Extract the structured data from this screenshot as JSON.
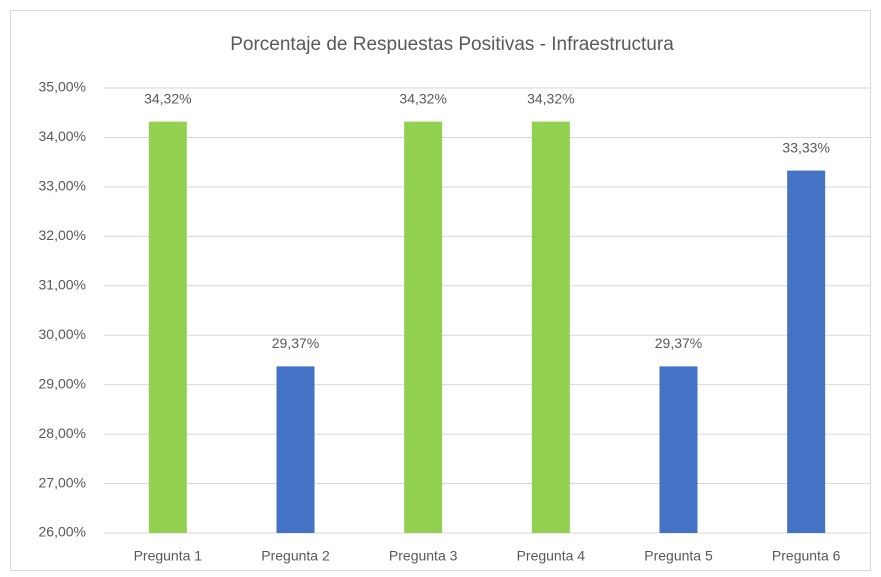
{
  "chart_data": {
    "type": "bar",
    "title": "Porcentaje de Respuestas Positivas - Infraestructura",
    "categories": [
      "Pregunta 1",
      "Pregunta 2",
      "Pregunta 3",
      "Pregunta 4",
      "Pregunta 5",
      "Pregunta 6"
    ],
    "values": [
      34.32,
      29.37,
      34.32,
      34.32,
      29.37,
      33.33
    ],
    "value_labels": [
      "34,32%",
      "29,37%",
      "34,32%",
      "34,32%",
      "29,37%",
      "33,33%"
    ],
    "colors": [
      "#92d050",
      "#4472c4",
      "#92d050",
      "#92d050",
      "#4472c4",
      "#4472c4"
    ],
    "ylim": [
      26,
      35
    ],
    "yticks": [
      {
        "value": 26,
        "label": "26,00%"
      },
      {
        "value": 27,
        "label": "27,00%"
      },
      {
        "value": 28,
        "label": "28,00%"
      },
      {
        "value": 29,
        "label": "29,00%"
      },
      {
        "value": 30,
        "label": "30,00%"
      },
      {
        "value": 31,
        "label": "31,00%"
      },
      {
        "value": 32,
        "label": "32,00%"
      },
      {
        "value": 33,
        "label": "33,00%"
      },
      {
        "value": 34,
        "label": "34,00%"
      },
      {
        "value": 35,
        "label": "35,00%"
      }
    ],
    "grid": true
  }
}
